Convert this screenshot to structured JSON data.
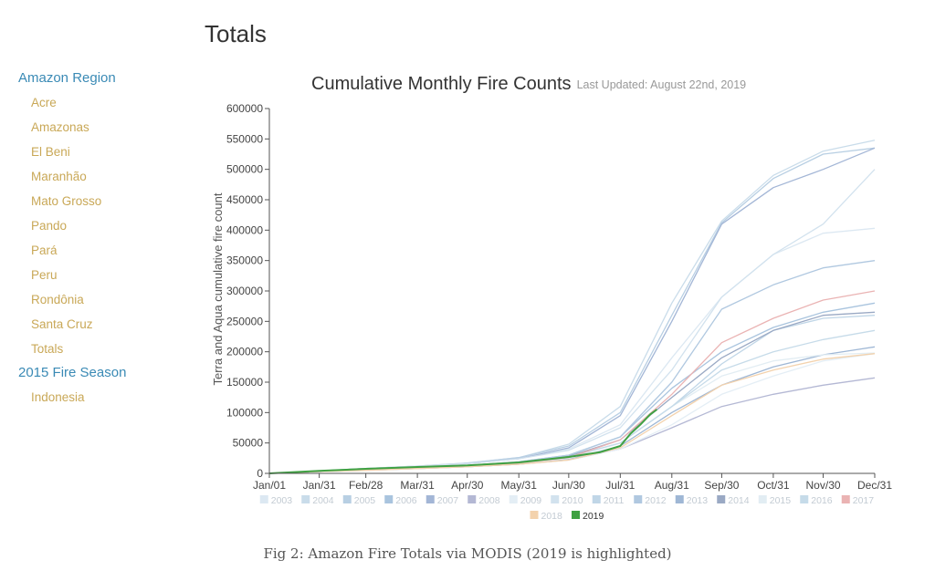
{
  "page": {
    "title": "Totals",
    "caption": "Fig 2: Amazon Fire Totals via MODIS (2019 is highlighted)"
  },
  "sidebar": {
    "sections": [
      {
        "heading": "Amazon Region",
        "items": [
          "Acre",
          "Amazonas",
          "El Beni",
          "Maranhão",
          "Mato Grosso",
          "Pando",
          "Pará",
          "Peru",
          "Rondônia",
          "Santa Cruz",
          "Totals"
        ]
      },
      {
        "heading": "2015 Fire Season",
        "items": [
          "Indonesia"
        ]
      }
    ],
    "colors": {
      "heading": "#3a8ab5",
      "item": "#c9a857"
    }
  },
  "chart_data": {
    "type": "line",
    "title": "Cumulative Monthly Fire Counts",
    "subtitle": "Last Updated: August 22nd, 2019",
    "xlabel": "",
    "ylabel": "Terra and Aqua cumulative fire count",
    "xlim": [
      1,
      365
    ],
    "ylim": [
      0,
      600000
    ],
    "grid": false,
    "legend_position": "bottom",
    "x_ticks": [
      {
        "label": "Jan/01",
        "day": 1
      },
      {
        "label": "Jan/31",
        "day": 31
      },
      {
        "label": "Feb/28",
        "day": 59
      },
      {
        "label": "Mar/31",
        "day": 90
      },
      {
        "label": "Apr/30",
        "day": 120
      },
      {
        "label": "May/31",
        "day": 151
      },
      {
        "label": "Jun/30",
        "day": 181
      },
      {
        "label": "Jul/31",
        "day": 212
      },
      {
        "label": "Aug/31",
        "day": 243
      },
      {
        "label": "Sep/30",
        "day": 273
      },
      {
        "label": "Oct/31",
        "day": 304
      },
      {
        "label": "Nov/30",
        "day": 334
      },
      {
        "label": "Dec/31",
        "day": 365
      }
    ],
    "y_ticks": [
      0,
      50000,
      100000,
      150000,
      200000,
      250000,
      300000,
      350000,
      400000,
      450000,
      500000,
      550000,
      600000
    ],
    "x": [
      1,
      31,
      59,
      90,
      120,
      151,
      181,
      212,
      243,
      273,
      304,
      334,
      365
    ],
    "series": [
      {
        "name": "2003",
        "color": "#dce8f2",
        "values": [
          0,
          4000,
          8000,
          12000,
          16000,
          24000,
          40000,
          80000,
          190000,
          290000,
          360000,
          395000,
          403000
        ]
      },
      {
        "name": "2004",
        "color": "#c9dcea",
        "values": [
          0,
          4000,
          8000,
          12000,
          17000,
          26000,
          48000,
          110000,
          280000,
          415000,
          490000,
          530000,
          548000
        ]
      },
      {
        "name": "2005",
        "color": "#b8cfe3",
        "values": [
          0,
          4000,
          8000,
          12000,
          17000,
          26000,
          45000,
          100000,
          260000,
          412000,
          485000,
          525000,
          535000
        ]
      },
      {
        "name": "2006",
        "color": "#a9c4de",
        "values": [
          0,
          3000,
          6000,
          9000,
          13000,
          19000,
          30000,
          60000,
          140000,
          200000,
          240000,
          265000,
          280000
        ]
      },
      {
        "name": "2007",
        "color": "#a3b6d6",
        "values": [
          0,
          4000,
          8000,
          11000,
          16000,
          24000,
          42000,
          95000,
          250000,
          410000,
          470000,
          500000,
          535000
        ]
      },
      {
        "name": "2008",
        "color": "#b4b8d4",
        "values": [
          0,
          3000,
          6000,
          8000,
          11000,
          15000,
          22000,
          40000,
          75000,
          110000,
          130000,
          145000,
          157000
        ]
      },
      {
        "name": "2009",
        "color": "#e4eef5",
        "values": [
          0,
          3000,
          5000,
          8000,
          11000,
          15000,
          22000,
          40000,
          80000,
          130000,
          160000,
          185000,
          197000
        ]
      },
      {
        "name": "2010",
        "color": "#d2e2ee",
        "values": [
          0,
          4000,
          8000,
          12000,
          16000,
          24000,
          38000,
          75000,
          170000,
          290000,
          360000,
          410000,
          500000
        ]
      },
      {
        "name": "2011",
        "color": "#c0d6e7",
        "values": [
          0,
          3000,
          6000,
          9000,
          12000,
          17000,
          27000,
          50000,
          110000,
          180000,
          235000,
          255000,
          260000
        ]
      },
      {
        "name": "2012",
        "color": "#b0c8e0",
        "values": [
          0,
          3000,
          6000,
          9000,
          13000,
          19000,
          30000,
          60000,
          150000,
          270000,
          310000,
          338000,
          350000
        ]
      },
      {
        "name": "2013",
        "color": "#9fb7d5",
        "values": [
          0,
          3000,
          5000,
          8000,
          11000,
          15000,
          23000,
          45000,
          100000,
          145000,
          175000,
          195000,
          208000
        ]
      },
      {
        "name": "2014",
        "color": "#9aa9c4",
        "values": [
          0,
          3000,
          6000,
          9000,
          12000,
          17000,
          28000,
          55000,
          125000,
          190000,
          235000,
          260000,
          265000
        ]
      },
      {
        "name": "2015",
        "color": "#e2edf3",
        "values": [
          0,
          3000,
          5000,
          8000,
          11000,
          16000,
          25000,
          50000,
          110000,
          160000,
          185000,
          195000,
          198000
        ]
      },
      {
        "name": "2016",
        "color": "#c6dbe9",
        "values": [
          0,
          3000,
          6000,
          9000,
          13000,
          18000,
          27000,
          50000,
          110000,
          170000,
          200000,
          220000,
          235000
        ]
      },
      {
        "name": "2017",
        "color": "#eab3b3",
        "values": [
          0,
          3000,
          6000,
          9000,
          12000,
          17000,
          26000,
          55000,
          130000,
          215000,
          255000,
          285000,
          300000
        ]
      },
      {
        "name": "2018",
        "color": "#f3d2ad",
        "values": [
          0,
          3000,
          5000,
          8000,
          11000,
          15000,
          22000,
          42000,
          95000,
          145000,
          170000,
          188000,
          197000
        ]
      },
      {
        "name": "2019",
        "color": "#3fa142",
        "highlight": true,
        "x": [
          1,
          31,
          59,
          90,
          120,
          151,
          181,
          200,
          212,
          218,
          224,
          230,
          234
        ],
        "values": [
          0,
          4000,
          7500,
          10500,
          13000,
          18000,
          27000,
          35000,
          45000,
          65000,
          80000,
          97000,
          105000
        ]
      }
    ]
  }
}
